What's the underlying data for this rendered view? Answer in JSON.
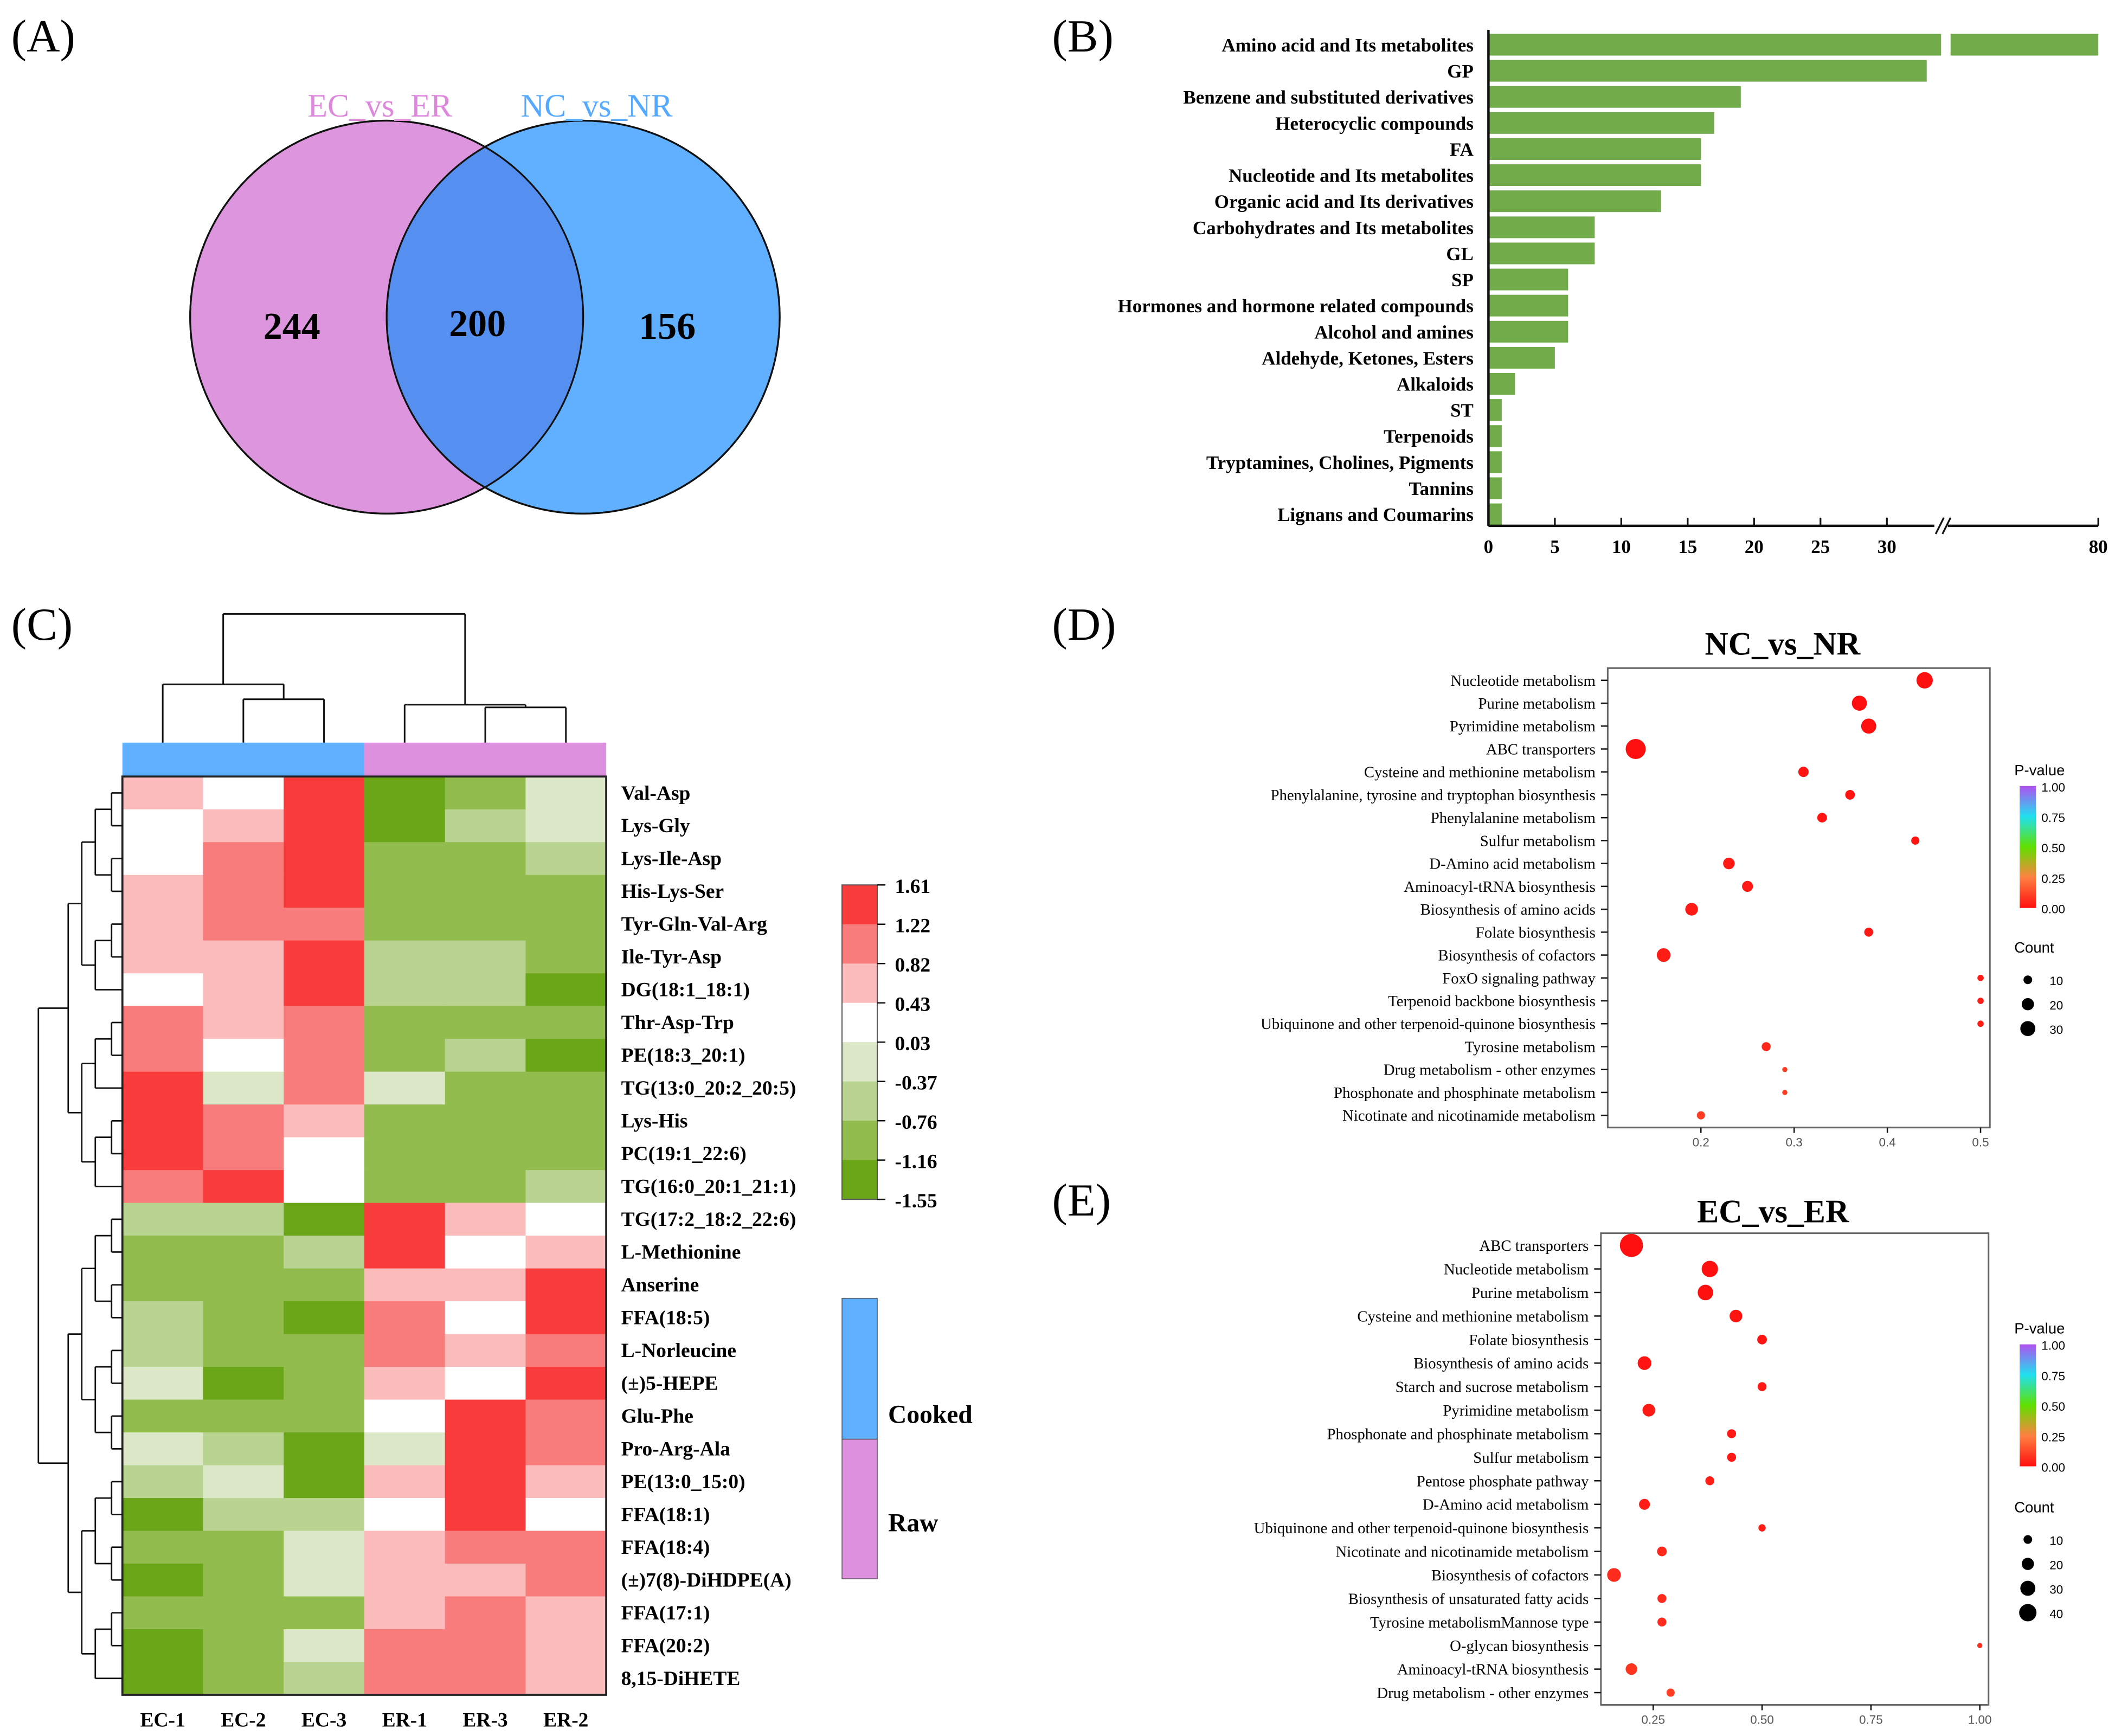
{
  "panel_labels": {
    "a": "(A)",
    "b": "(B)",
    "c": "(C)",
    "d": "(D)",
    "e": "(E)"
  },
  "chart_data": [
    {
      "type": "venn",
      "sets": [
        {
          "name": "EC_vs_ER",
          "only": 244,
          "color": "#dd95dd",
          "label_color": "#dd88dd"
        },
        {
          "name": "NC_vs_NR",
          "only": 156,
          "color": "#60b0ff",
          "label_color": "#55aaff"
        }
      ],
      "overlap": 200,
      "overlap_color": "#5590f0",
      "labels": {
        "left": "EC_vs_ER",
        "right": "NC_vs_NR",
        "left_count": "244",
        "overlap_count": "200",
        "right_count": "156"
      }
    },
    {
      "type": "bar",
      "orientation": "horizontal",
      "color": "#72ab4a",
      "categories": [
        "Amino acid and Its metabolites",
        "GP",
        "Benzene and substituted derivatives",
        "Heterocyclic compounds",
        "FA",
        "Nucleotide and Its metabolites",
        "Organic acid and Its derivatives",
        "Carbohydrates and Its metabolites",
        "GL",
        "SP",
        "Hormones and hormone related compounds",
        "Alcohol and amines",
        "Aldehyde, Ketones, Esters",
        "Alkaloids",
        "ST",
        "Terpenoids",
        "Tryptamines, Cholines, Pigments",
        "Tannins",
        "Lignans and Coumarins"
      ],
      "values": [
        80,
        33,
        19,
        17,
        16,
        16,
        13,
        8,
        8,
        6,
        6,
        6,
        5,
        2,
        1,
        1,
        1,
        1,
        1
      ],
      "xticks": [
        "0",
        "5",
        "10",
        "15",
        "20",
        "25",
        "30",
        "80"
      ],
      "axis_break": [
        33,
        78
      ],
      "xlim": [
        0,
        80
      ]
    },
    {
      "type": "heatmap",
      "columns": [
        "EC-1",
        "EC-2",
        "EC-3",
        "ER-1",
        "ER-3",
        "ER-2"
      ],
      "groups": [
        {
          "name": "Cooked",
          "color": "#5fb0ff",
          "columns": 3
        },
        {
          "name": "Raw",
          "color": "#dd90dd",
          "columns": 3
        }
      ],
      "rows": [
        "Val-Asp",
        "Lys-Gly",
        "Lys-Ile-Asp",
        "His-Lys-Ser",
        "Tyr-Gln-Val-Arg",
        "Ile-Tyr-Asp",
        "DG(18:1_18:1)",
        "Thr-Asp-Trp",
        "PE(18:3_20:1)",
        "TG(13:0_20:2_20:5)",
        "Lys-His",
        "PC(19:1_22:6)",
        "TG(16:0_20:1_21:1)",
        "TG(17:2_18:2_22:6)",
        "L-Methionine",
        "Anserine",
        "FFA(18:5)",
        "L-Norleucine",
        "(±)5-HEPE",
        "Glu-Phe",
        "Pro-Arg-Ala",
        "PE(13:0_15:0)",
        "FFA(18:1)",
        "FFA(18:4)",
        "(±)7(8)-DiHDPE(A)",
        "FFA(17:1)",
        "FFA(20:2)",
        "8,15-DiHETE"
      ],
      "values": [
        [
          0.63,
          0.23,
          1.42,
          -1.36,
          -0.96,
          -0.17
        ],
        [
          0.23,
          0.63,
          1.42,
          -1.36,
          -0.57,
          -0.17
        ],
        [
          0.23,
          1.02,
          1.42,
          -0.96,
          -0.96,
          -0.57
        ],
        [
          0.63,
          1.02,
          1.42,
          -0.96,
          -0.96,
          -0.96
        ],
        [
          0.63,
          1.02,
          1.02,
          -0.96,
          -0.96,
          -0.96
        ],
        [
          0.63,
          0.63,
          1.42,
          -0.57,
          -0.57,
          -0.96
        ],
        [
          0.23,
          0.63,
          1.42,
          -0.57,
          -0.57,
          -1.36
        ],
        [
          1.02,
          0.63,
          1.02,
          -0.96,
          -0.96,
          -0.96
        ],
        [
          1.02,
          0.23,
          1.02,
          -0.96,
          -0.57,
          -1.36
        ],
        [
          1.42,
          -0.17,
          1.02,
          -0.17,
          -0.96,
          -0.96
        ],
        [
          1.42,
          1.02,
          0.63,
          -0.96,
          -0.96,
          -0.96
        ],
        [
          1.42,
          1.02,
          0.23,
          -0.96,
          -0.96,
          -0.96
        ],
        [
          1.02,
          1.42,
          0.23,
          -0.96,
          -0.96,
          -0.57
        ],
        [
          -0.57,
          -0.57,
          -1.36,
          1.42,
          0.63,
          0.23
        ],
        [
          -0.96,
          -0.96,
          -0.57,
          1.42,
          0.23,
          0.63
        ],
        [
          -0.96,
          -0.96,
          -0.96,
          0.63,
          0.63,
          1.42
        ],
        [
          -0.57,
          -0.96,
          -1.36,
          1.02,
          0.23,
          1.42
        ],
        [
          -0.57,
          -0.96,
          -0.96,
          1.02,
          0.63,
          1.02
        ],
        [
          -0.17,
          -1.36,
          -0.96,
          0.63,
          0.23,
          1.42
        ],
        [
          -0.96,
          -0.96,
          -0.96,
          0.23,
          1.42,
          1.02
        ],
        [
          -0.17,
          -0.57,
          -1.36,
          -0.17,
          1.42,
          1.02
        ],
        [
          -0.57,
          -0.17,
          -1.36,
          0.63,
          1.42,
          0.63
        ],
        [
          -1.36,
          -0.57,
          -0.57,
          0.23,
          1.42,
          0.23
        ],
        [
          -0.96,
          -0.96,
          -0.17,
          0.63,
          1.02,
          1.02
        ],
        [
          -1.36,
          -0.96,
          -0.17,
          0.63,
          0.63,
          1.02
        ],
        [
          -0.96,
          -0.96,
          -0.96,
          0.63,
          1.02,
          0.63
        ],
        [
          -1.36,
          -0.96,
          -0.17,
          1.02,
          1.02,
          0.63
        ],
        [
          -1.36,
          -0.96,
          -0.57,
          1.02,
          1.02,
          0.63
        ]
      ],
      "scale_ticks": [
        "1.61",
        "1.22",
        "0.82",
        "0.43",
        "0.03",
        "-0.37",
        "-0.76",
        "-1.16",
        "-1.55"
      ],
      "scale_colors": [
        "#f83c3c",
        "#f87c7c",
        "#fcbcbc",
        "#ffffff",
        "#dce8c8",
        "#b8d490",
        "#93bc4f",
        "#6aa617"
      ],
      "range": [
        -1.55,
        1.61
      ]
    },
    {
      "type": "scatter",
      "title": "NC_vs_NR",
      "categories": [
        "Nucleotide metabolism",
        "Purine metabolism",
        "Pyrimidine metabolism",
        "ABC transporters",
        "Cysteine and methionine metabolism",
        "Phenylalanine, tyrosine and tryptophan biosynthesis",
        "Phenylalanine metabolism",
        "Sulfur metabolism",
        "D-Amino acid metabolism",
        "Aminoacyl-tRNA biosynthesis",
        "Biosynthesis of amino acids",
        "Folate biosynthesis",
        "Biosynthesis of cofactors",
        "FoxO signaling pathway",
        "Terpenoid backbone biosynthesis",
        "Ubiquinone and other terpenoid-quinone biosynthesis",
        "Tyrosine metabolism",
        "Drug metabolism - other enzymes",
        "Phosphonate and phosphinate metabolism",
        "Nicotinate and nicotinamide metabolism"
      ],
      "x": [
        0.44,
        0.37,
        0.38,
        0.13,
        0.31,
        0.36,
        0.33,
        0.43,
        0.23,
        0.25,
        0.19,
        0.38,
        0.16,
        0.5,
        0.5,
        0.5,
        0.27,
        0.29,
        0.29,
        0.2
      ],
      "count": [
        20,
        17,
        17,
        30,
        8,
        7,
        7,
        5,
        10,
        9,
        12,
        6,
        14,
        3,
        3,
        3,
        6,
        2,
        2,
        5
      ],
      "pvalue": [
        0.0,
        0.0,
        0.0,
        0.0,
        0.01,
        0.01,
        0.01,
        0.01,
        0.02,
        0.02,
        0.02,
        0.02,
        0.03,
        0.03,
        0.03,
        0.03,
        0.05,
        0.1,
        0.1,
        0.1
      ],
      "xlim": [
        0.1,
        0.51
      ],
      "xticks": [
        "0.2",
        "0.3",
        "0.4",
        "0.5"
      ],
      "xtick_values": [
        0.2,
        0.3,
        0.4,
        0.5
      ],
      "legend_pvalue_title": "P-value",
      "legend_pvalue_ticks": [
        "1.00",
        "0.75",
        "0.50",
        "0.25",
        "0.00"
      ],
      "legend_count_title": "Count",
      "legend_count_values": [
        10,
        20,
        30
      ]
    },
    {
      "type": "scatter",
      "title": "EC_vs_ER",
      "categories": [
        "ABC transporters",
        "Nucleotide metabolism",
        "Purine metabolism",
        "Cysteine and methionine metabolism",
        "Folate biosynthesis",
        "Biosynthesis of amino acids",
        "Starch and sucrose metabolism",
        "Pyrimidine metabolism",
        "Phosphonate and phosphinate metabolism",
        "Sulfur metabolism",
        "Pentose phosphate pathway",
        "D-Amino acid metabolism",
        "Ubiquinone and other terpenoid-quinone biosynthesis",
        "Nicotinate and nicotinamide metabolism",
        "Biosynthesis of cofactors",
        "Biosynthesis of unsaturated fatty acids",
        "Tyrosine metabolismMannose type",
        "O-glycan biosynthesis",
        "Aminoacyl-tRNA biosynthesis",
        "Drug metabolism - other enzymes"
      ],
      "x": [
        0.2,
        0.38,
        0.37,
        0.44,
        0.5,
        0.23,
        0.5,
        0.24,
        0.43,
        0.43,
        0.38,
        0.23,
        0.5,
        0.27,
        0.16,
        0.27,
        0.27,
        1.0,
        0.2,
        0.29
      ],
      "count": [
        40,
        20,
        18,
        12,
        7,
        14,
        6,
        12,
        6,
        6,
        6,
        9,
        4,
        7,
        14,
        6,
        6,
        2,
        10,
        5
      ],
      "pvalue": [
        0.0,
        0.0,
        0.0,
        0.01,
        0.01,
        0.01,
        0.02,
        0.02,
        0.02,
        0.02,
        0.03,
        0.03,
        0.03,
        0.05,
        0.06,
        0.06,
        0.06,
        0.07,
        0.08,
        0.1
      ],
      "xlim": [
        0.13,
        1.02
      ],
      "xticks": [
        "0.25",
        "0.50",
        "0.75",
        "1.00"
      ],
      "xtick_values": [
        0.25,
        0.5,
        0.75,
        1.0
      ],
      "legend_pvalue_title": "P-value",
      "legend_pvalue_ticks": [
        "1.00",
        "0.75",
        "0.50",
        "0.25",
        "0.00"
      ],
      "legend_count_title": "Count",
      "legend_count_values": [
        10,
        20,
        30,
        40
      ]
    }
  ]
}
